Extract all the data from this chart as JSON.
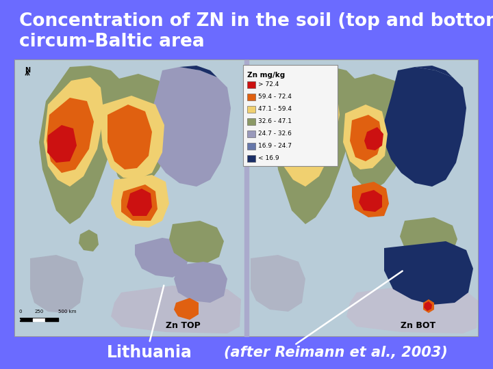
{
  "background_color": "#6B6BFF",
  "title_line1": "Concentration of ZN in the soil (top and bottom),",
  "title_line2": "circum-Baltic area",
  "title_color": "#ffffff",
  "title_fontsize": 19,
  "title_bold": true,
  "label_lithuania": "Lithuania",
  "label_reference": "(after Reimann et al., 2003)",
  "label_color": "#ffffff",
  "label_fontsize": 17,
  "ref_fontsize": 15,
  "map_bg": "#c8dce8",
  "sea_color": "#b8ccd8",
  "map_border_color": "#999999",
  "legend_bg": "#f5f5f5",
  "legend_title": "Zn mg/kg",
  "legend_items": [
    [
      "> 72.4",
      "#cc1111"
    ],
    [
      "59.4 - 72.4",
      "#e06010"
    ],
    [
      "47.1 - 59.4",
      "#f0d070"
    ],
    [
      "32.6 - 47.1",
      "#8b9966"
    ],
    [
      "24.7 - 32.6",
      "#9999bb"
    ],
    [
      "16.9 - 24.7",
      "#6677aa"
    ],
    [
      "< 16.9",
      "#1a2e66"
    ]
  ],
  "divider_color": "#aaaacc",
  "label_znTOP": "Zn TOP",
  "label_znBOT": "Zn BOT"
}
